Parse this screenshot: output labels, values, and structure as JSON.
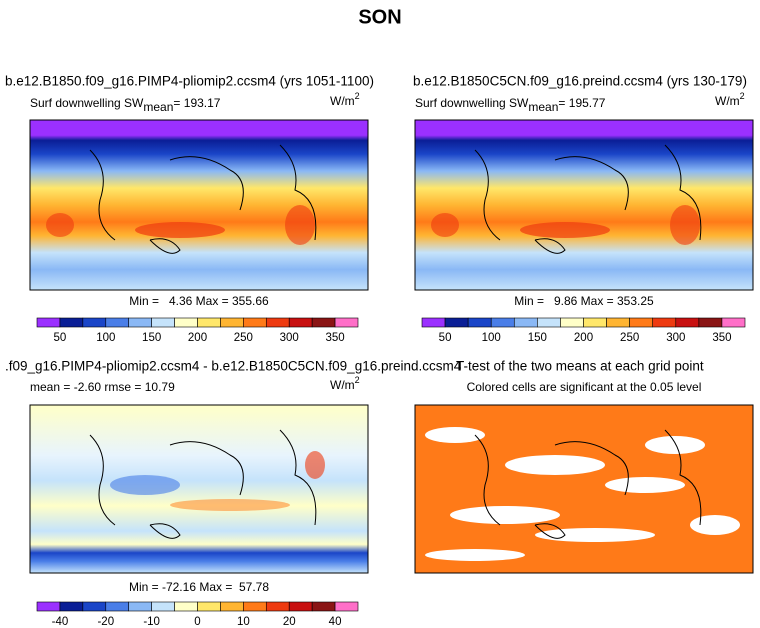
{
  "title": "SON",
  "colorbar_colors": [
    "#9b30ff",
    "#0a1e96",
    "#1a45c8",
    "#4a7ee8",
    "#8ab8f5",
    "#c5e3fb",
    "#ffffc8",
    "#ffe76a",
    "#ffb532",
    "#ff7a18",
    "#ee3a10",
    "#c81010",
    "#8a1414",
    "#ff6fc8"
  ],
  "panels": [
    {
      "title": "b.e12.B1850.f09_g16.PIMP4-pliomip2.ccsm4 (yrs 1051-1100)",
      "left_text": "Surf downwelling SW",
      "subscript": "mean",
      "left_value": "= 193.17",
      "units": "W/m",
      "units_power": "2",
      "stats": "Min =   4.36 Max = 355.66",
      "colorbar_labels": [
        "50",
        "100",
        "150",
        "200",
        "250",
        "300",
        "350"
      ]
    },
    {
      "title": "b.e12.B1850C5CN.f09_g16.preind.ccsm4 (yrs 130-179)",
      "left_text": "Surf downwelling SW",
      "subscript": "mean",
      "left_value": "= 195.77",
      "units": "W/m",
      "units_power": "2",
      "stats": "Min =   9.86 Max = 353.25",
      "colorbar_labels": [
        "50",
        "100",
        "150",
        "200",
        "250",
        "300",
        "350"
      ]
    },
    {
      "title": ".f09_g16.PIMP4-pliomip2.ccsm4 - b.e12.B1850C5CN.f09_g16.preind.ccsm4",
      "left_text": "mean =  -2.60     rmse =  10.79",
      "units": "W/m",
      "units_power": "2",
      "stats": "Min = -72.16 Max =  57.78",
      "colorbar_labels": [
        "-40",
        "-20",
        "-10",
        "0",
        "10",
        "20",
        "40"
      ]
    },
    {
      "title": "T-test of the two means at each grid point",
      "left_text": "Colored cells are significant at the 0.05 level"
    }
  ]
}
